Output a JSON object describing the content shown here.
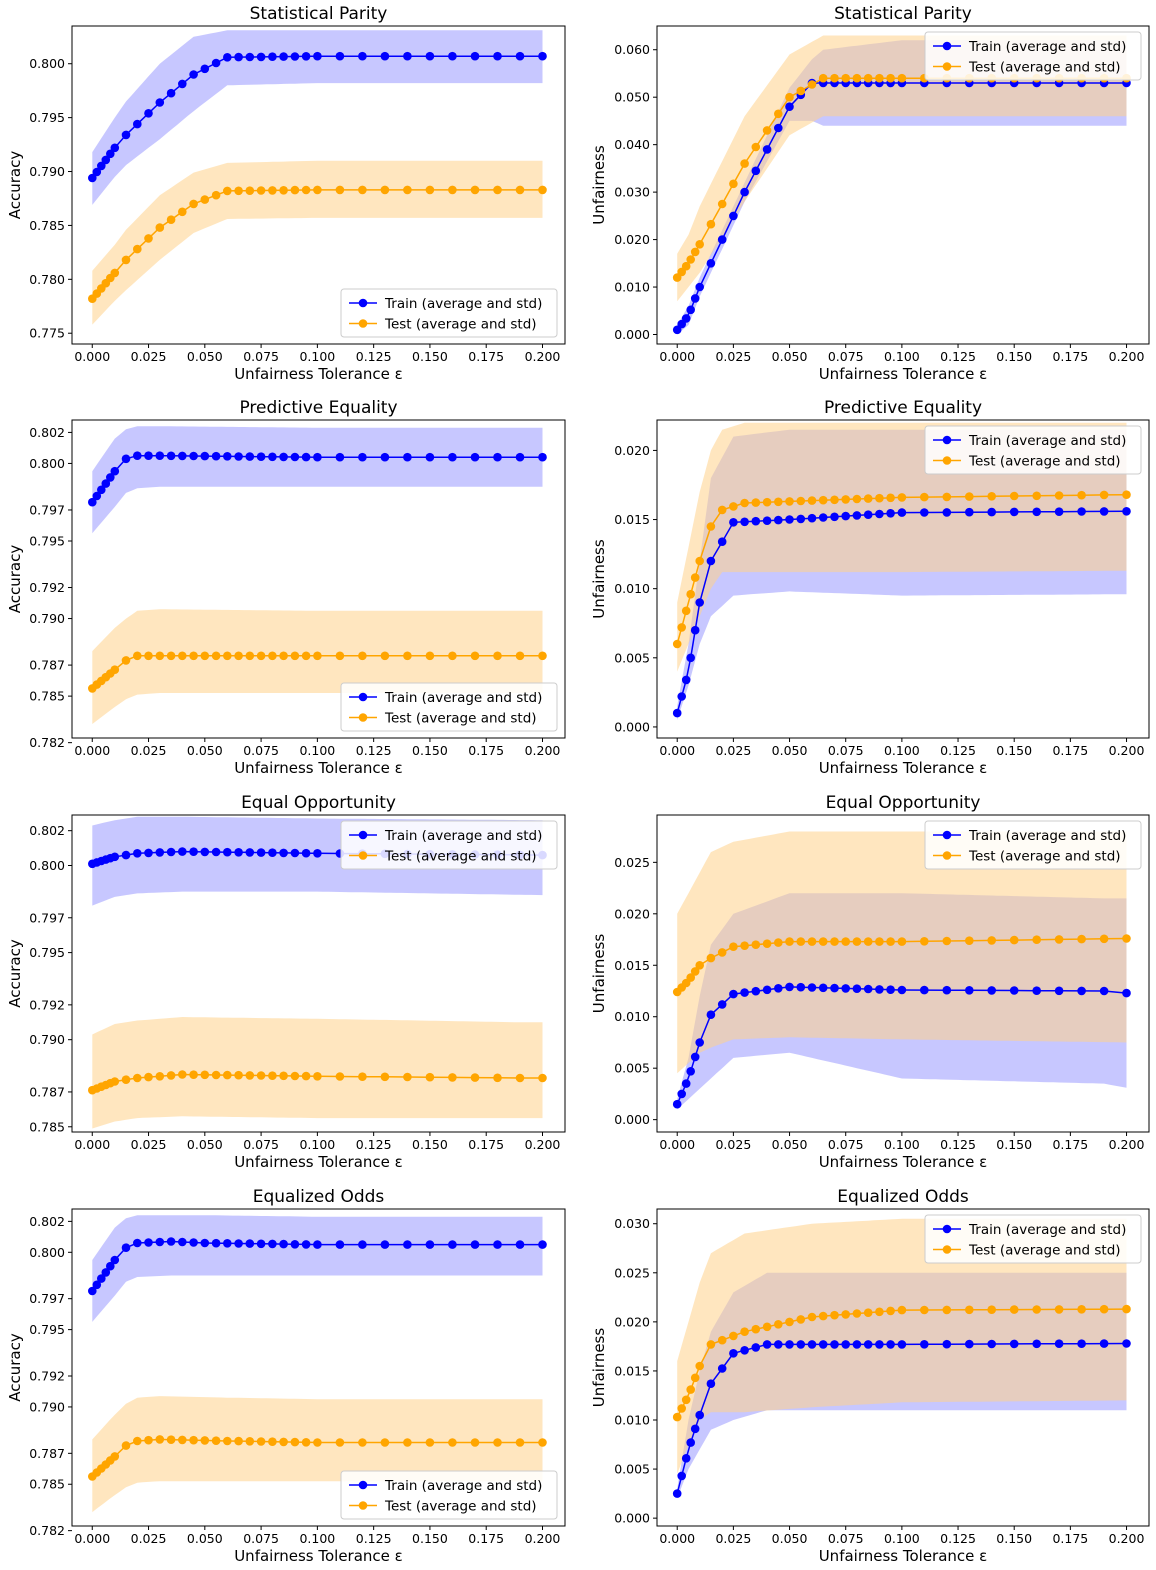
{
  "legend_labels": {
    "train": "Train (average and std)",
    "test": "Test (average and std)"
  },
  "colors": {
    "train": "#0000ff",
    "test": "#ffa500",
    "train_band": "#9999ff",
    "test_band": "#ffd28a"
  },
  "chart_data": [
    {
      "type": "line",
      "title": "Statistical Parity",
      "xlabel": "Unfairness Tolerance ε",
      "ylabel": "Accuracy",
      "legend": "lower-right",
      "grid": false,
      "xlim": [
        -0.009,
        0.21
      ],
      "ylim": [
        0.774,
        0.8035
      ],
      "xticks": [
        "0.000",
        "0.025",
        "0.050",
        "0.075",
        "0.100",
        "0.125",
        "0.150",
        "0.175",
        "0.200"
      ],
      "yticks": [
        "0.775",
        "0.780",
        "0.785",
        "0.790",
        "0.795",
        "0.800"
      ],
      "series": [
        {
          "name": "Train (average and std)",
          "color": "#0000ff",
          "x": [
            0,
            0.01,
            0.015,
            0.03,
            0.045,
            0.06,
            0.1,
            0.2
          ],
          "y": [
            0.7894,
            0.7922,
            0.7934,
            0.7964,
            0.799,
            0.8006,
            0.8007,
            0.8007
          ],
          "band_upper": [
            0.7918,
            0.795,
            0.7965,
            0.8,
            0.8025,
            0.8031,
            0.8031,
            0.8031
          ],
          "band_lower": [
            0.7869,
            0.7895,
            0.7906,
            0.793,
            0.7956,
            0.798,
            0.7982,
            0.7982
          ]
        },
        {
          "name": "Test (average and std)",
          "color": "#ffa500",
          "x": [
            0,
            0.01,
            0.015,
            0.03,
            0.045,
            0.06,
            0.1,
            0.2
          ],
          "y": [
            0.7782,
            0.7806,
            0.7818,
            0.7848,
            0.787,
            0.7882,
            0.7883,
            0.7883
          ],
          "band_upper": [
            0.7808,
            0.7832,
            0.7846,
            0.7878,
            0.7899,
            0.7908,
            0.791,
            0.791
          ],
          "band_lower": [
            0.7758,
            0.778,
            0.779,
            0.7818,
            0.7843,
            0.7856,
            0.7857,
            0.7857
          ]
        }
      ]
    },
    {
      "type": "line",
      "title": "Statistical Parity",
      "xlabel": "Unfairness Tolerance ε",
      "ylabel": "Unfairness",
      "legend": "top-right",
      "grid": false,
      "xlim": [
        -0.009,
        0.21
      ],
      "ylim": [
        -0.002,
        0.065
      ],
      "xticks": [
        "0.000",
        "0.025",
        "0.050",
        "0.075",
        "0.100",
        "0.125",
        "0.150",
        "0.175",
        "0.200"
      ],
      "yticks": [
        "0.000",
        "0.010",
        "0.020",
        "0.030",
        "0.040",
        "0.050",
        "0.060"
      ],
      "series": [
        {
          "name": "Train (average and std)",
          "color": "#0000ff",
          "x": [
            0,
            0.005,
            0.01,
            0.03,
            0.05,
            0.06,
            0.065,
            0.1,
            0.2
          ],
          "y": [
            0.001,
            0.004,
            0.01,
            0.03,
            0.048,
            0.053,
            0.053,
            0.053,
            0.053
          ],
          "band_upper": [
            0.002,
            0.006,
            0.012,
            0.032,
            0.052,
            0.058,
            0.06,
            0.062,
            0.062
          ],
          "band_lower": [
            0.0,
            0.002,
            0.008,
            0.028,
            0.045,
            0.045,
            0.044,
            0.044,
            0.044
          ]
        },
        {
          "name": "Test (average and std)",
          "color": "#ffa500",
          "x": [
            0,
            0.005,
            0.01,
            0.03,
            0.05,
            0.065,
            0.1,
            0.2
          ],
          "y": [
            0.012,
            0.015,
            0.019,
            0.036,
            0.05,
            0.054,
            0.054,
            0.054
          ],
          "band_upper": [
            0.017,
            0.021,
            0.027,
            0.046,
            0.059,
            0.063,
            0.063,
            0.063
          ],
          "band_lower": [
            0.007,
            0.01,
            0.013,
            0.028,
            0.042,
            0.046,
            0.046,
            0.046
          ]
        }
      ]
    },
    {
      "type": "line",
      "title": "Predictive Equality",
      "xlabel": "Unfairness Tolerance ε",
      "ylabel": "Accuracy",
      "legend": "lower-right",
      "grid": false,
      "xlim": [
        -0.009,
        0.21
      ],
      "ylim": [
        0.7823,
        0.8028
      ],
      "xticks": [
        "0.000",
        "0.025",
        "0.050",
        "0.075",
        "0.100",
        "0.125",
        "0.150",
        "0.175",
        "0.200"
      ],
      "yticks": [
        "0.782",
        "0.785",
        "0.787",
        "0.790",
        "0.792",
        "0.795",
        "0.797",
        "0.800",
        "0.802"
      ],
      "series": [
        {
          "name": "Train (average and std)",
          "color": "#0000ff",
          "x": [
            0,
            0.01,
            0.015,
            0.02,
            0.03,
            0.1,
            0.2
          ],
          "y": [
            0.7975,
            0.7995,
            0.8003,
            0.8005,
            0.8005,
            0.8004,
            0.8004
          ],
          "band_upper": [
            0.7995,
            0.8016,
            0.8022,
            0.8024,
            0.8024,
            0.8023,
            0.8023
          ],
          "band_lower": [
            0.7955,
            0.7972,
            0.7981,
            0.7984,
            0.7985,
            0.7985,
            0.7985
          ]
        },
        {
          "name": "Test (average and std)",
          "color": "#ffa500",
          "x": [
            0,
            0.01,
            0.015,
            0.02,
            0.03,
            0.1,
            0.2
          ],
          "y": [
            0.7855,
            0.7867,
            0.7873,
            0.7876,
            0.7876,
            0.7876,
            0.7876
          ],
          "band_upper": [
            0.7879,
            0.7894,
            0.79,
            0.7905,
            0.7906,
            0.7905,
            0.7905
          ],
          "band_lower": [
            0.7832,
            0.7843,
            0.7848,
            0.7851,
            0.7852,
            0.7852,
            0.7852
          ]
        }
      ]
    },
    {
      "type": "line",
      "title": "Predictive Equality",
      "xlabel": "Unfairness Tolerance ε",
      "ylabel": "Unfairness",
      "legend": "top-right",
      "grid": false,
      "xlim": [
        -0.009,
        0.21
      ],
      "ylim": [
        -0.0008,
        0.0222
      ],
      "xticks": [
        "0.000",
        "0.025",
        "0.050",
        "0.075",
        "0.100",
        "0.125",
        "0.150",
        "0.175",
        "0.200"
      ],
      "yticks": [
        "0.000",
        "0.005",
        "0.010",
        "0.015",
        "0.020"
      ],
      "series": [
        {
          "name": "Train (average and std)",
          "color": "#0000ff",
          "x": [
            0,
            0.005,
            0.01,
            0.015,
            0.025,
            0.05,
            0.1,
            0.2
          ],
          "y": [
            0.001,
            0.004,
            0.009,
            0.012,
            0.0148,
            0.015,
            0.0155,
            0.0156
          ],
          "band_upper": [
            0.0015,
            0.006,
            0.012,
            0.018,
            0.021,
            0.0215,
            0.0215,
            0.0215
          ],
          "band_lower": [
            0.0005,
            0.003,
            0.006,
            0.008,
            0.0095,
            0.0098,
            0.0095,
            0.0096
          ]
        },
        {
          "name": "Test (average and std)",
          "color": "#ffa500",
          "x": [
            0,
            0.005,
            0.01,
            0.015,
            0.02,
            0.03,
            0.1,
            0.2
          ],
          "y": [
            0.006,
            0.009,
            0.012,
            0.0145,
            0.0157,
            0.0162,
            0.0166,
            0.0168
          ],
          "band_upper": [
            0.009,
            0.013,
            0.017,
            0.02,
            0.0215,
            0.022,
            0.022,
            0.022
          ],
          "band_lower": [
            0.004,
            0.006,
            0.008,
            0.01,
            0.0112,
            0.0112,
            0.0112,
            0.0113
          ]
        }
      ]
    },
    {
      "type": "line",
      "title": "Equal Opportunity",
      "xlabel": "Unfairness Tolerance ε",
      "ylabel": "Accuracy",
      "legend": "top-right",
      "grid": false,
      "xlim": [
        -0.009,
        0.21
      ],
      "ylim": [
        0.7847,
        0.8029
      ],
      "xticks": [
        "0.000",
        "0.025",
        "0.050",
        "0.075",
        "0.100",
        "0.125",
        "0.150",
        "0.175",
        "0.200"
      ],
      "yticks": [
        "0.785",
        "0.787",
        "0.790",
        "0.792",
        "0.795",
        "0.797",
        "0.800",
        "0.802"
      ],
      "series": [
        {
          "name": "Train (average and std)",
          "color": "#0000ff",
          "x": [
            0,
            0.01,
            0.02,
            0.04,
            0.1,
            0.2
          ],
          "y": [
            0.8001,
            0.8005,
            0.8007,
            0.8008,
            0.8007,
            0.8006
          ],
          "band_upper": [
            0.8023,
            0.8026,
            0.8028,
            0.8028,
            0.8027,
            0.8026
          ],
          "band_lower": [
            0.7977,
            0.7982,
            0.7984,
            0.7985,
            0.7985,
            0.7983
          ]
        },
        {
          "name": "Test (average and std)",
          "color": "#ffa500",
          "x": [
            0,
            0.01,
            0.02,
            0.04,
            0.1,
            0.19,
            0.2
          ],
          "y": [
            0.7871,
            0.7876,
            0.7878,
            0.788,
            0.7879,
            0.7878,
            0.7878
          ],
          "band_upper": [
            0.7903,
            0.7909,
            0.7911,
            0.7913,
            0.7912,
            0.791,
            0.791
          ],
          "band_lower": [
            0.7849,
            0.7853,
            0.7855,
            0.7856,
            0.7855,
            0.7855,
            0.7855
          ]
        }
      ]
    },
    {
      "type": "line",
      "title": "Equal Opportunity",
      "xlabel": "Unfairness Tolerance ε",
      "ylabel": "Unfairness",
      "legend": "top-right",
      "grid": false,
      "xlim": [
        -0.009,
        0.21
      ],
      "ylim": [
        -0.0012,
        0.0296
      ],
      "xticks": [
        "0.000",
        "0.025",
        "0.050",
        "0.075",
        "0.100",
        "0.125",
        "0.150",
        "0.175",
        "0.200"
      ],
      "yticks": [
        "0.000",
        "0.005",
        "0.010",
        "0.015",
        "0.020",
        "0.025"
      ],
      "series": [
        {
          "name": "Train (average and std)",
          "color": "#0000ff",
          "x": [
            0,
            0.005,
            0.01,
            0.015,
            0.025,
            0.05,
            0.1,
            0.19,
            0.2
          ],
          "y": [
            0.0015,
            0.004,
            0.0075,
            0.0102,
            0.0122,
            0.0129,
            0.0126,
            0.0125,
            0.0123
          ],
          "band_upper": [
            0.002,
            0.006,
            0.012,
            0.017,
            0.02,
            0.022,
            0.022,
            0.0215,
            0.0215
          ],
          "band_lower": [
            0.001,
            0.002,
            0.003,
            0.004,
            0.006,
            0.0065,
            0.004,
            0.0035,
            0.0031
          ]
        },
        {
          "name": "Test (average and std)",
          "color": "#ffa500",
          "x": [
            0,
            0.005,
            0.01,
            0.015,
            0.025,
            0.05,
            0.1,
            0.2
          ],
          "y": [
            0.0124,
            0.0135,
            0.015,
            0.0157,
            0.0168,
            0.0173,
            0.0173,
            0.0176
          ],
          "band_upper": [
            0.02,
            0.022,
            0.024,
            0.026,
            0.027,
            0.028,
            0.028,
            0.028
          ],
          "band_lower": [
            0.0045,
            0.0055,
            0.0065,
            0.007,
            0.0078,
            0.008,
            0.0078,
            0.0075
          ]
        }
      ]
    },
    {
      "type": "line",
      "title": "Equalized Odds",
      "xlabel": "Unfairness Tolerance ε",
      "ylabel": "Accuracy",
      "legend": "lower-right",
      "grid": false,
      "xlim": [
        -0.009,
        0.21
      ],
      "ylim": [
        0.7823,
        0.8028
      ],
      "xticks": [
        "0.000",
        "0.025",
        "0.050",
        "0.075",
        "0.100",
        "0.125",
        "0.150",
        "0.175",
        "0.200"
      ],
      "yticks": [
        "0.782",
        "0.785",
        "0.787",
        "0.790",
        "0.792",
        "0.795",
        "0.797",
        "0.800",
        "0.802"
      ],
      "series": [
        {
          "name": "Train (average and std)",
          "color": "#0000ff",
          "x": [
            0,
            0.01,
            0.015,
            0.02,
            0.035,
            0.05,
            0.1,
            0.2
          ],
          "y": [
            0.7975,
            0.7995,
            0.8003,
            0.8006,
            0.8007,
            0.8006,
            0.8005,
            0.8005
          ],
          "band_upper": [
            0.7995,
            0.8016,
            0.8022,
            0.8024,
            0.8024,
            0.8024,
            0.8023,
            0.8023
          ],
          "band_lower": [
            0.7955,
            0.7972,
            0.7981,
            0.7984,
            0.7985,
            0.7985,
            0.7985,
            0.7985
          ]
        },
        {
          "name": "Test (average and std)",
          "color": "#ffa500",
          "x": [
            0,
            0.01,
            0.015,
            0.02,
            0.03,
            0.06,
            0.1,
            0.2
          ],
          "y": [
            0.7855,
            0.7868,
            0.7875,
            0.7878,
            0.7879,
            0.7878,
            0.7877,
            0.7877
          ],
          "band_upper": [
            0.7879,
            0.7895,
            0.7902,
            0.7906,
            0.7907,
            0.7906,
            0.7905,
            0.7905
          ],
          "band_lower": [
            0.7832,
            0.7843,
            0.7848,
            0.7851,
            0.7852,
            0.7852,
            0.7852,
            0.7852
          ]
        }
      ]
    },
    {
      "type": "line",
      "title": "Equalized Odds",
      "xlabel": "Unfairness Tolerance ε",
      "ylabel": "Unfairness",
      "legend": "top-right",
      "grid": false,
      "xlim": [
        -0.009,
        0.21
      ],
      "ylim": [
        -0.0008,
        0.0315
      ],
      "xticks": [
        "0.000",
        "0.025",
        "0.050",
        "0.075",
        "0.100",
        "0.125",
        "0.150",
        "0.175",
        "0.200"
      ],
      "yticks": [
        "0.000",
        "0.005",
        "0.010",
        "0.015",
        "0.020",
        "0.025",
        "0.030"
      ],
      "series": [
        {
          "name": "Train (average and std)",
          "color": "#0000ff",
          "x": [
            0,
            0.005,
            0.01,
            0.015,
            0.025,
            0.04,
            0.1,
            0.2
          ],
          "y": [
            0.0025,
            0.007,
            0.0105,
            0.0137,
            0.0168,
            0.0177,
            0.0177,
            0.0178
          ],
          "band_upper": [
            0.003,
            0.01,
            0.015,
            0.019,
            0.023,
            0.025,
            0.025,
            0.025
          ],
          "band_lower": [
            0.002,
            0.005,
            0.007,
            0.009,
            0.01,
            0.011,
            0.011,
            0.011
          ]
        },
        {
          "name": "Test (average and std)",
          "color": "#ffa500",
          "x": [
            0,
            0.005,
            0.01,
            0.015,
            0.03,
            0.06,
            0.1,
            0.2
          ],
          "y": [
            0.0103,
            0.0125,
            0.0155,
            0.0177,
            0.019,
            0.0205,
            0.0212,
            0.0213
          ],
          "band_upper": [
            0.016,
            0.02,
            0.024,
            0.027,
            0.029,
            0.03,
            0.0305,
            0.0305
          ],
          "band_lower": [
            0.0045,
            0.0075,
            0.01,
            0.0108,
            0.0108,
            0.0113,
            0.0118,
            0.012
          ]
        }
      ]
    }
  ]
}
